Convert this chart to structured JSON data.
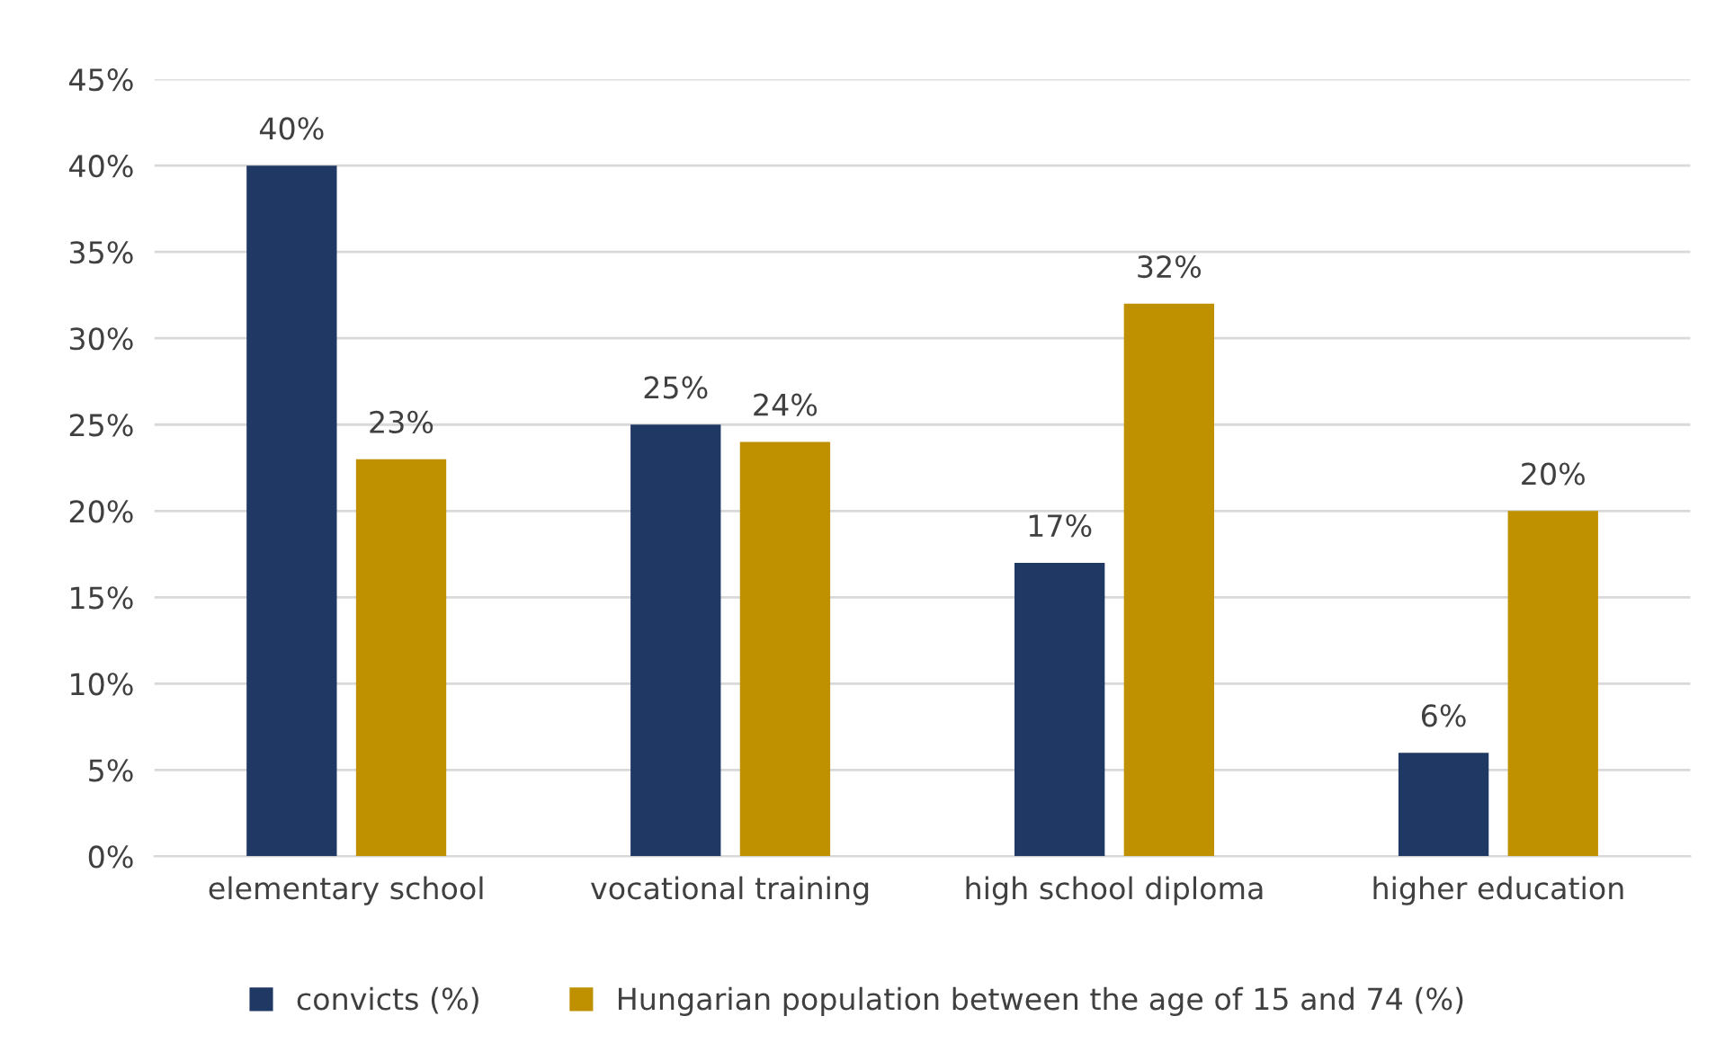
{
  "chart_data": {
    "type": "bar",
    "categories": [
      "elementary school",
      "vocational training",
      "high school diploma",
      "higher education"
    ],
    "series": [
      {
        "name": "convicts (%)",
        "color": "#1f3864",
        "values": [
          40,
          25,
          17,
          6
        ],
        "value_labels": [
          "40%",
          "25%",
          "17%",
          "6%"
        ]
      },
      {
        "name": "Hungarian population between the age of 15 and 74 (%)",
        "color": "#bf9000",
        "values": [
          23,
          24,
          32,
          20
        ],
        "value_labels": [
          "23%",
          "24%",
          "32%",
          "20%"
        ]
      }
    ],
    "ylim": [
      0,
      45
    ],
    "yticks": [
      {
        "value": 0,
        "label": "0%"
      },
      {
        "value": 5,
        "label": "5%"
      },
      {
        "value": 10,
        "label": "10%"
      },
      {
        "value": 15,
        "label": "15%"
      },
      {
        "value": 20,
        "label": "20%"
      },
      {
        "value": 25,
        "label": "25%"
      },
      {
        "value": 30,
        "label": "30%"
      },
      {
        "value": 35,
        "label": "35%"
      },
      {
        "value": 40,
        "label": "40%"
      },
      {
        "value": 45,
        "label": "45%"
      }
    ],
    "grid": "y",
    "legend": "bottom"
  }
}
